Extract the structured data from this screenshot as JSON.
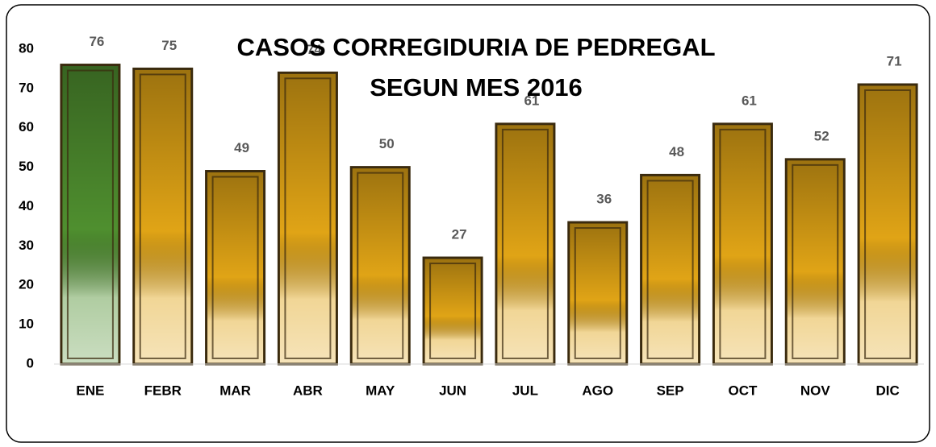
{
  "chart_data": {
    "type": "bar",
    "title": [
      "CASOS CORREGIDURIA DE PEDREGAL",
      "SEGUN MES 2016"
    ],
    "categories": [
      "ENE",
      "FEBR",
      "MAR",
      "ABR",
      "MAY",
      "JUN",
      "JUL",
      "AGO",
      "SEP",
      "OCT",
      "NOV",
      "DIC"
    ],
    "values": [
      76,
      75,
      49,
      74,
      50,
      27,
      61,
      36,
      48,
      61,
      52,
      71
    ],
    "colors": [
      "#4f8f2f",
      "#e0a416",
      "#e0a416",
      "#e0a416",
      "#e0a416",
      "#e0a416",
      "#e0a416",
      "#e0a416",
      "#e0a416",
      "#e0a416",
      "#e0a416",
      "#e0a416"
    ],
    "ylim": [
      0,
      80
    ],
    "yticks": [
      0,
      10,
      20,
      30,
      40,
      50,
      60,
      70,
      80
    ],
    "grid": false
  }
}
